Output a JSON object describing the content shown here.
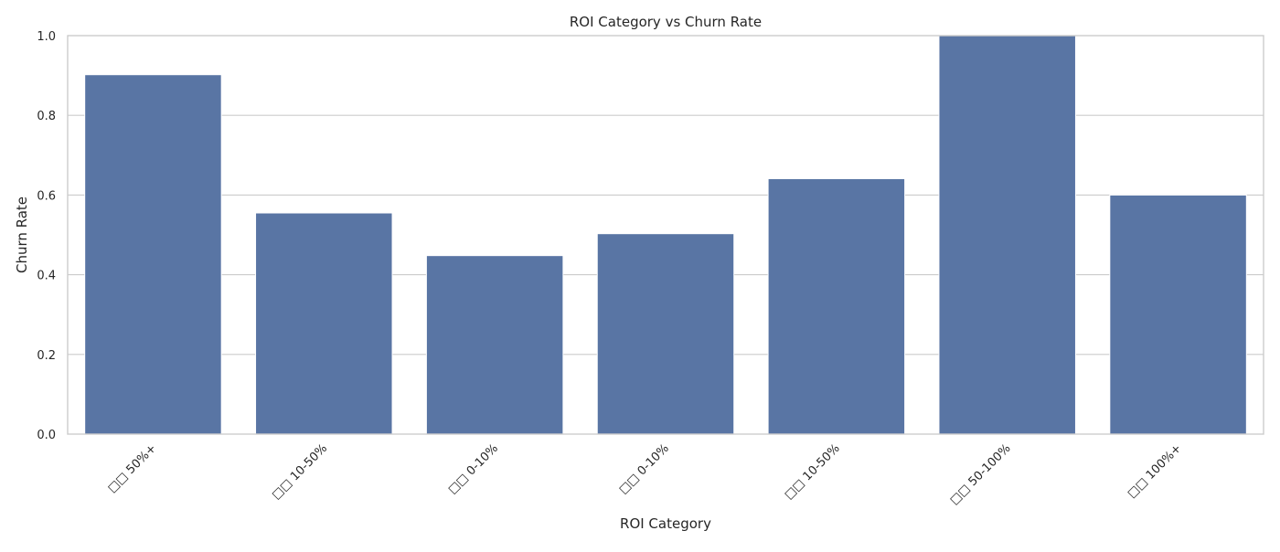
{
  "chart_data": {
    "type": "bar",
    "title": "ROI Category vs Churn Rate",
    "xlabel": "ROI Category",
    "ylabel": "Churn Rate",
    "categories": [
      "□□ 50%+",
      "□□ 10-50%",
      "□□ 0-10%",
      "□□ 0-10%",
      "□□ 10-50%",
      "□□ 50-100%",
      "□□ 100%+"
    ],
    "values": [
      0.902,
      0.555,
      0.448,
      0.503,
      0.641,
      1.0,
      0.6
    ],
    "ylim": [
      0,
      1.0
    ],
    "yticks": [
      0.0,
      0.2,
      0.4,
      0.6,
      0.8,
      1.0
    ],
    "ytick_labels": [
      "0.0",
      "0.2",
      "0.4",
      "0.6",
      "0.8",
      "1.0"
    ],
    "xtick_rotation": 45,
    "grid": "horizontal",
    "legend": "none",
    "bar_color": "#5975a4",
    "grid_color": "#cccccc",
    "background_color": "#ffffff"
  }
}
